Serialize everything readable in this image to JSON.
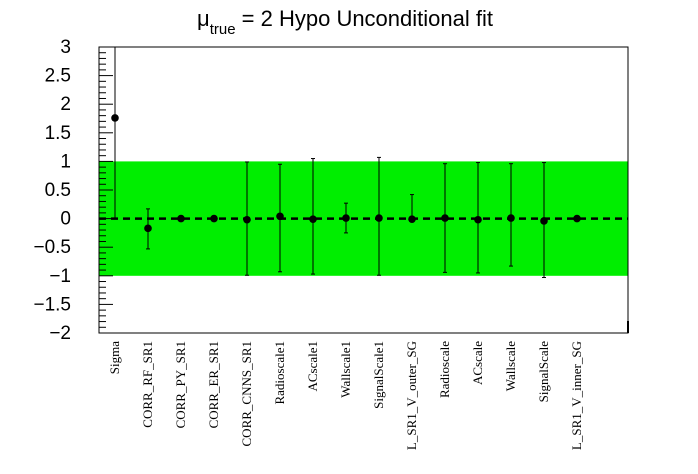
{
  "chart_data": {
    "type": "scatter",
    "title": {
      "symbol": "μ",
      "subscript": "true",
      "rest": " = 2 Hypo Unconditional fit"
    },
    "xlabel": "",
    "ylabel": "",
    "ylim": [
      -2,
      3
    ],
    "yticks": [
      {
        "value": 3,
        "label": "3"
      },
      {
        "value": 2.5,
        "label": "2.5"
      },
      {
        "value": 2,
        "label": "2"
      },
      {
        "value": 1.5,
        "label": "1.5"
      },
      {
        "value": 1,
        "label": "1"
      },
      {
        "value": 0.5,
        "label": "0.5"
      },
      {
        "value": 0,
        "label": "0"
      },
      {
        "value": -0.5,
        "label": "−0.5"
      },
      {
        "value": -1,
        "label": "−1"
      },
      {
        "value": -1.5,
        "label": "−1.5"
      },
      {
        "value": -2,
        "label": "−2"
      }
    ],
    "band": {
      "low": -1,
      "high": 1,
      "color": "#00ee00"
    },
    "reference_line": {
      "y": 0,
      "style": "dashed",
      "color": "#000000"
    },
    "grid": false,
    "categories": [
      "Sigma",
      "CORR_RF_SR1",
      "CORR_PY_SR1",
      "CORR_ER_SR1",
      "CORR_CNNS_SR1",
      "Radioscale1",
      "ACscale1",
      "Wallscale1",
      "SignalScale1",
      "L_SR1_V_outer_SG",
      "Radioscale",
      "ACscale",
      "Wallscale",
      "SignalScale",
      "L_SR1_V_inner_SG"
    ],
    "values": [
      1.76,
      -0.17,
      0.0,
      0.0,
      -0.02,
      0.04,
      -0.01,
      0.01,
      0.01,
      -0.01,
      0.01,
      -0.02,
      0.01,
      -0.04,
      0.0
    ],
    "err_low": [
      1.76,
      0.36,
      0.0,
      0.0,
      0.97,
      0.97,
      0.96,
      0.26,
      1.0,
      0.0,
      0.95,
      0.93,
      0.84,
      0.99,
      0.0
    ],
    "err_high": [
      1.24,
      0.34,
      0.0,
      0.0,
      1.01,
      0.91,
      1.06,
      0.26,
      1.06,
      0.43,
      0.95,
      1.0,
      0.95,
      1.02,
      0.0
    ],
    "marker_color": "#000000"
  }
}
